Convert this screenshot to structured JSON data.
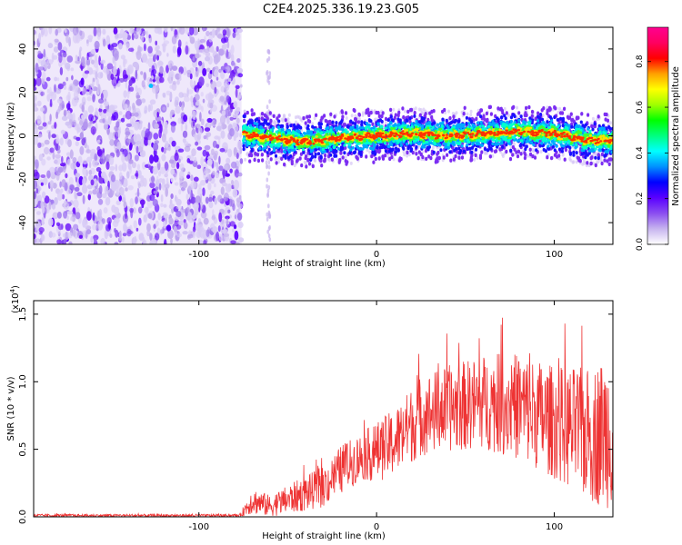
{
  "title": "C2E4.2025.336.19.23.G05",
  "chart_data": [
    {
      "type": "heatmap",
      "title": "C2E4.2025.336.19.23.G05",
      "xlabel": "Height of straight line (km)",
      "ylabel": "Frequency (Hz)",
      "xlim": [
        -193,
        133
      ],
      "ylim": [
        -50,
        50
      ],
      "x_ticks": [
        -100,
        0,
        100
      ],
      "x_tick_labels": [
        "-100",
        "0",
        "100"
      ],
      "y_ticks": [
        -40,
        -20,
        0,
        20,
        40
      ],
      "y_tick_labels": [
        "-40",
        "-20",
        "0",
        "20",
        "40"
      ],
      "noise_region_km": [
        -193,
        -76
      ],
      "signal_start_km": -76,
      "spike_km": -61,
      "signal_center_hz": [
        {
          "x": -76,
          "y": 1
        },
        {
          "x": -60,
          "y": -1
        },
        {
          "x": -40,
          "y": -3
        },
        {
          "x": -20,
          "y": -1
        },
        {
          "x": 0,
          "y": 0
        },
        {
          "x": 20,
          "y": 1
        },
        {
          "x": 40,
          "y": 0
        },
        {
          "x": 60,
          "y": 1
        },
        {
          "x": 80,
          "y": 2
        },
        {
          "x": 100,
          "y": 1
        },
        {
          "x": 120,
          "y": -2
        },
        {
          "x": 133,
          "y": -2
        }
      ],
      "colorbar": {
        "label": "Normalized spectral amplitude",
        "range": [
          0.0,
          0.95
        ],
        "ticks": [
          0.0,
          0.2,
          0.4,
          0.6,
          0.8
        ],
        "tick_labels": [
          "0.0",
          "0.2",
          "0.4",
          "0.6",
          "0.8"
        ],
        "colors": [
          "#ffffff",
          "#c7b4ef",
          "#8b4ef0",
          "#5a00ff",
          "#0000ff",
          "#0090ff",
          "#00ffff",
          "#00ff80",
          "#00ff00",
          "#a0ff00",
          "#ffff00",
          "#ffa000",
          "#ff0000",
          "#ff0060",
          "#ff0090"
        ]
      }
    },
    {
      "type": "line",
      "xlabel": "Height of straight line (km)",
      "ylabel": "SNR (10 * v/v)",
      "multiplier_label": "(x10",
      "multiplier_exp": "4",
      "multiplier_close": ")",
      "xlim": [
        -193,
        133
      ],
      "ylim": [
        0,
        1.6
      ],
      "x_ticks": [
        -100,
        0,
        100
      ],
      "x_tick_labels": [
        "-100",
        "0",
        "100"
      ],
      "y_ticks": [
        0.0,
        0.5,
        1.0,
        1.5
      ],
      "y_tick_labels": [
        "0.0",
        "0.5",
        "1.0",
        "1.5"
      ],
      "series": [
        {
          "name": "SNR",
          "color": "#ee3333",
          "envelope": [
            {
              "x": -193,
              "mean": 0.01,
              "amp": 0.01
            },
            {
              "x": -77,
              "mean": 0.01,
              "amp": 0.01
            },
            {
              "x": -70,
              "mean": 0.12,
              "amp": 0.1
            },
            {
              "x": -60,
              "mean": 0.08,
              "amp": 0.08
            },
            {
              "x": -45,
              "mean": 0.15,
              "amp": 0.12
            },
            {
              "x": -30,
              "mean": 0.22,
              "amp": 0.15
            },
            {
              "x": -20,
              "mean": 0.35,
              "amp": 0.18
            },
            {
              "x": -8,
              "mean": 0.45,
              "amp": 0.18
            },
            {
              "x": 0,
              "mean": 0.48,
              "amp": 0.22
            },
            {
              "x": 10,
              "mean": 0.55,
              "amp": 0.25
            },
            {
              "x": 25,
              "mean": 0.75,
              "amp": 0.3
            },
            {
              "x": 40,
              "mean": 0.8,
              "amp": 0.32
            },
            {
              "x": 60,
              "mean": 0.85,
              "amp": 0.35
            },
            {
              "x": 80,
              "mean": 0.82,
              "amp": 0.4
            },
            {
              "x": 100,
              "mean": 0.7,
              "amp": 0.42
            },
            {
              "x": 120,
              "mean": 0.6,
              "amp": 0.5
            },
            {
              "x": 133,
              "mean": 0.65,
              "amp": 0.6
            }
          ]
        }
      ]
    }
  ]
}
